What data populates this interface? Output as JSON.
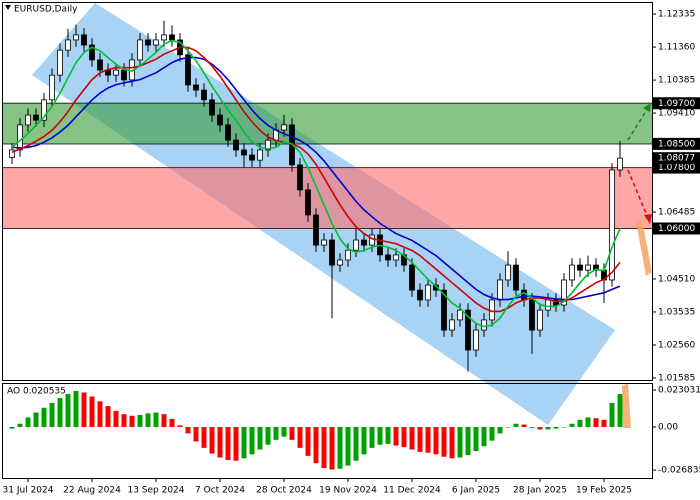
{
  "chart_data": [
    {
      "type": "candlestick",
      "title": "EURUSD,Daily",
      "categories": [
        null,
        null,
        "31 Jul 2024",
        null,
        null,
        null,
        null,
        null,
        null,
        null,
        "22 Aug 2024",
        null,
        null,
        null,
        null,
        null,
        null,
        null,
        "13 Sep 2024",
        null,
        null,
        null,
        null,
        null,
        null,
        null,
        "7 Oct 2024",
        null,
        null,
        null,
        null,
        null,
        null,
        null,
        "28 Oct 2024",
        null,
        null,
        null,
        null,
        null,
        null,
        null,
        "19 Nov 2024",
        null,
        null,
        null,
        null,
        null,
        null,
        null,
        "11 Dec 2024",
        null,
        null,
        null,
        null,
        null,
        null,
        null,
        "6 Jan 2025",
        null,
        null,
        null,
        null,
        null,
        null,
        null,
        "28 Jan 2025",
        null,
        null,
        null,
        null,
        null,
        null,
        null,
        "19 Feb 2025",
        null,
        null
      ],
      "open": [
        1.081,
        1.0832,
        1.0906,
        1.0935,
        1.092,
        1.098,
        1.1053,
        1.1127,
        1.1157,
        1.1172,
        1.1142,
        1.1098,
        1.1068,
        1.1053,
        1.1068,
        1.1039,
        1.1098,
        1.1157,
        1.1142,
        1.1157,
        1.1172,
        1.1157,
        1.1113,
        1.1024,
        1.1009,
        1.098,
        1.0935,
        1.0906,
        1.0861,
        1.0832,
        1.0817,
        1.0802,
        1.0832,
        1.0861,
        1.0891,
        1.0906,
        1.0788,
        1.0714,
        1.064,
        1.0551,
        1.0566,
        1.0492,
        1.0507,
        1.0536,
        1.0566,
        1.0551,
        1.0581,
        1.0522,
        1.0507,
        1.0522,
        1.0492,
        1.0418,
        1.0389,
        1.0433,
        1.0418,
        1.03,
        1.033,
        1.0359,
        1.0241,
        1.03,
        1.033,
        1.0389,
        1.0448,
        1.0492,
        1.0418,
        1.0389,
        1.03,
        1.0359,
        1.0389,
        1.0374,
        1.0448,
        1.0492,
        1.0477,
        1.0492,
        1.0477,
        1.0448,
        1.0773
      ],
      "high": [
        1.0852,
        1.0926,
        1.0955,
        1.0955,
        1.1,
        1.1073,
        1.1147,
        1.119,
        1.1202,
        1.1192,
        1.1162,
        1.1118,
        1.1088,
        1.1088,
        1.1088,
        1.1118,
        1.1177,
        1.1177,
        1.1177,
        1.1214,
        1.12,
        1.1177,
        1.1133,
        1.1044,
        1.1029,
        1.1,
        1.0955,
        1.0926,
        1.0881,
        1.0852,
        1.0837,
        1.0852,
        1.0881,
        1.0911,
        1.0936,
        1.0926,
        1.0808,
        1.0734,
        1.066,
        1.0586,
        1.0586,
        1.0527,
        1.0556,
        1.06,
        1.0586,
        1.0601,
        1.0601,
        1.0542,
        1.0542,
        1.0542,
        1.0512,
        1.0438,
        1.0453,
        1.0453,
        1.0438,
        1.035,
        1.0379,
        1.0379,
        1.032,
        1.035,
        1.0409,
        1.0468,
        1.0533,
        1.0512,
        1.0438,
        1.0409,
        1.0379,
        1.0409,
        1.0409,
        1.0468,
        1.0512,
        1.0512,
        1.052,
        1.0512,
        1.0497,
        1.0793,
        1.0858
      ],
      "low": [
        1.079,
        1.0812,
        1.0886,
        1.09,
        1.09,
        1.096,
        1.1033,
        1.1107,
        1.1137,
        1.1122,
        1.1078,
        1.1048,
        1.1033,
        1.1033,
        1.1019,
        1.1019,
        1.1078,
        1.1122,
        1.1122,
        1.1137,
        1.1137,
        1.1093,
        1.1004,
        1.0989,
        1.096,
        1.0915,
        1.0886,
        1.0841,
        1.0812,
        1.078,
        1.0782,
        1.0782,
        1.0812,
        1.0841,
        1.0871,
        1.0768,
        1.0694,
        1.062,
        1.0531,
        1.0531,
        1.0335,
        1.0472,
        1.0487,
        1.0516,
        1.0531,
        1.0531,
        1.0502,
        1.0487,
        1.0487,
        1.0472,
        1.0398,
        1.0369,
        1.0369,
        1.0398,
        1.028,
        1.028,
        1.031,
        1.0178,
        1.0221,
        1.028,
        1.031,
        1.0369,
        1.0428,
        1.0398,
        1.0369,
        1.023,
        1.028,
        1.0339,
        1.0354,
        1.0354,
        1.0428,
        1.0457,
        1.0457,
        1.0457,
        1.038,
        1.0428,
        1.0753
      ],
      "close": [
        1.0832,
        1.0906,
        1.0935,
        1.092,
        1.098,
        1.1053,
        1.1127,
        1.1157,
        1.1172,
        1.1142,
        1.1098,
        1.1068,
        1.1053,
        1.1068,
        1.1039,
        1.1098,
        1.1157,
        1.1142,
        1.1157,
        1.1172,
        1.1157,
        1.1113,
        1.1024,
        1.1009,
        1.098,
        1.0935,
        1.0906,
        1.0861,
        1.0832,
        1.0817,
        1.0802,
        1.0832,
        1.0861,
        1.0891,
        1.0906,
        1.0788,
        1.0714,
        1.064,
        1.0551,
        1.0566,
        1.0492,
        1.0507,
        1.0536,
        1.0566,
        1.0551,
        1.0581,
        1.0522,
        1.0507,
        1.0522,
        1.0492,
        1.0418,
        1.0389,
        1.0433,
        1.0418,
        1.03,
        1.033,
        1.0359,
        1.0241,
        1.03,
        1.033,
        1.0389,
        1.0448,
        1.0492,
        1.0418,
        1.0389,
        1.03,
        1.0359,
        1.0389,
        1.0374,
        1.0448,
        1.0492,
        1.0477,
        1.0492,
        1.0477,
        1.0448,
        1.0773,
        1.0808
      ],
      "series": [
        {
          "color": "#0000d0",
          "values": [
            1.084,
            1.0838,
            1.084,
            1.0845,
            1.0855,
            1.0868,
            1.0885,
            1.0905,
            1.093,
            1.0955,
            1.098,
            1.1,
            1.1015,
            1.1025,
            1.103,
            1.1035,
            1.104,
            1.105,
            1.106,
            1.1075,
            1.109,
            1.11,
            1.1105,
            1.1105,
            1.11,
            1.1085,
            1.1065,
            1.104,
            1.101,
            1.098,
            1.095,
            1.0925,
            1.0905,
            1.089,
            1.088,
            1.087,
            1.086,
            1.0845,
            1.0825,
            1.08,
            1.077,
            1.074,
            1.071,
            1.068,
            1.0655,
            1.0635,
            1.0615,
            1.06,
            1.0585,
            1.0575,
            1.0565,
            1.055,
            1.0535,
            1.052,
            1.05,
            1.048,
            1.046,
            1.044,
            1.042,
            1.0405,
            1.0395,
            1.039,
            1.039,
            1.0395,
            1.04,
            1.04,
            1.0398,
            1.0395,
            1.0392,
            1.039,
            1.039,
            1.0395,
            1.04,
            1.0405,
            1.041,
            1.042,
            1.043
          ]
        },
        {
          "color": "#d00000",
          "values": [
            1.0825,
            1.0835,
            1.0845,
            1.0858,
            1.0872,
            1.089,
            1.0915,
            1.0945,
            1.098,
            1.101,
            1.104,
            1.106,
            1.107,
            1.1075,
            1.1075,
            1.1075,
            1.108,
            1.109,
            1.11,
            1.1115,
            1.1125,
            1.1135,
            1.1135,
            1.1125,
            1.1105,
            1.108,
            1.105,
            1.1015,
            1.098,
            1.0945,
            1.0915,
            1.089,
            1.087,
            1.086,
            1.0855,
            1.085,
            1.084,
            1.082,
            1.079,
            1.075,
            1.071,
            1.067,
            1.0635,
            1.0605,
            1.0585,
            1.057,
            1.0565,
            1.056,
            1.0555,
            1.0545,
            1.0535,
            1.052,
            1.05,
            1.048,
            1.046,
            1.044,
            1.042,
            1.04,
            1.038,
            1.0365,
            1.0355,
            1.0355,
            1.0365,
            1.038,
            1.039,
            1.0395,
            1.0395,
            1.039,
            1.0385,
            1.0385,
            1.0395,
            1.041,
            1.0425,
            1.044,
            1.045,
            1.047,
            1.05
          ]
        },
        {
          "color": "#00c030",
          "values": [
            1.084,
            1.086,
            1.088,
            1.0905,
            1.093,
            1.096,
            1.1,
            1.1045,
            1.109,
            1.112,
            1.1135,
            1.1125,
            1.1105,
            1.1085,
            1.107,
            1.1065,
            1.108,
            1.11,
            1.112,
            1.1145,
            1.1155,
            1.115,
            1.1125,
            1.1095,
            1.106,
            1.102,
            1.0985,
            1.095,
            1.092,
            1.0885,
            1.0855,
            1.084,
            1.0835,
            1.084,
            1.0855,
            1.085,
            1.0825,
            1.078,
            1.0725,
            1.067,
            1.0615,
            1.057,
            1.054,
            1.053,
            1.0535,
            1.0545,
            1.055,
            1.0545,
            1.0535,
            1.052,
            1.05,
            1.0475,
            1.045,
            1.043,
            1.0405,
            1.038,
            1.0365,
            1.034,
            1.032,
            1.031,
            1.0315,
            1.0335,
            1.037,
            1.04,
            1.041,
            1.0395,
            1.0375,
            1.037,
            1.037,
            1.0385,
            1.041,
            1.044,
            1.0465,
            1.048,
            1.0475,
            1.0545,
            1.06
          ]
        }
      ],
      "zones": [
        {
          "top": 1.097,
          "bottom": 1.085,
          "color": "#3d9c3d"
        },
        {
          "top": 1.078,
          "bottom": 1.06,
          "color": "#ff6f6f"
        }
      ],
      "last_price": 1.08077,
      "ylim": [
        1.01525,
        1.1275
      ],
      "yticks": [
        1.12335,
        {
          "value": 1.1136,
          "label": "1.11360"
        },
        1.10385,
        {
          "value": 1.097,
          "label": "1.09700"
        },
        {
          "value": 1.0941,
          "label": "1.09410"
        },
        {
          "value": 1.085,
          "label": "1.08500"
        },
        {
          "value": 1.078,
          "label": "1.07800"
        },
        1.06485,
        {
          "value": 1.06,
          "label": "1.06000"
        },
        {
          "value": 1.0451,
          "label": "1.04510"
        },
        1.03535,
        {
          "value": 1.0256,
          "label": "1.02560"
        },
        1.01585
      ],
      "grid": false
    },
    {
      "type": "bar",
      "title": "AO 0.020535",
      "values": [
        -0.001,
        0.002,
        0.006,
        0.009,
        0.012,
        0.015,
        0.018,
        0.0205,
        0.0225,
        0.0215,
        0.019,
        0.016,
        0.013,
        0.01,
        0.008,
        0.007,
        0.0075,
        0.0085,
        0.009,
        0.008,
        0.005,
        0.001,
        -0.004,
        -0.009,
        -0.013,
        -0.0165,
        -0.019,
        -0.0205,
        -0.021,
        -0.0195,
        -0.017,
        -0.014,
        -0.011,
        -0.008,
        -0.006,
        -0.008,
        -0.013,
        -0.018,
        -0.0225,
        -0.0255,
        -0.0265,
        -0.026,
        -0.024,
        -0.021,
        -0.017,
        -0.013,
        -0.011,
        -0.0105,
        -0.0115,
        -0.0125,
        -0.014,
        -0.0155,
        -0.016,
        -0.017,
        -0.0185,
        -0.0195,
        -0.019,
        -0.0175,
        -0.015,
        -0.012,
        -0.0085,
        -0.004,
        0.0,
        0.002,
        0.0015,
        -0.0005,
        -0.0015,
        -0.0015,
        -0.001,
        0.0,
        0.002,
        0.0045,
        0.006,
        0.0055,
        0.0045,
        0.015,
        0.0205
      ],
      "colors": {
        "up": "#00a000",
        "down": "#ff0000"
      },
      "ylim": [
        -0.03175,
        0.02739
      ],
      "yticks": [
        0.023031,
        {
          "value": 0,
          "label": "0.00"
        },
        -0.026835
      ],
      "grid": false
    }
  ]
}
